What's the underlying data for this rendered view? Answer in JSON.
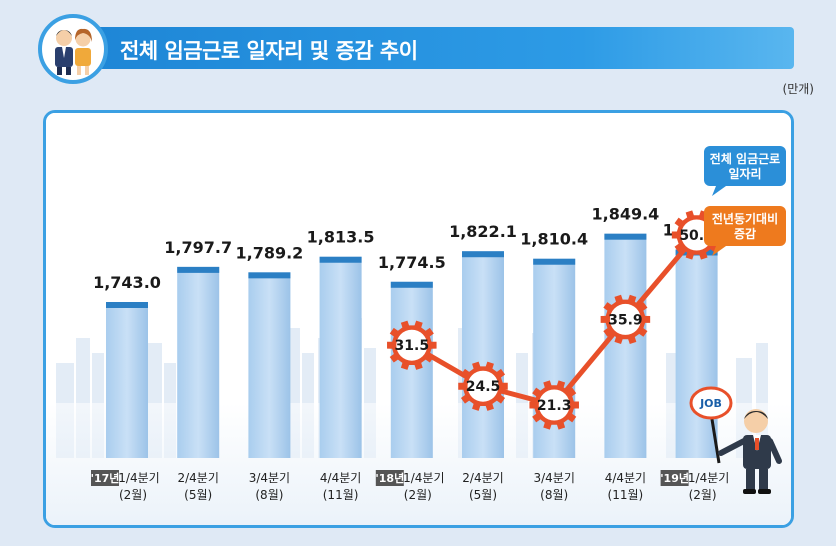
{
  "header": {
    "title": "전체 임금근로 일자리 및 증감 추이",
    "unit": "(만개)"
  },
  "chart_data": {
    "type": "bar",
    "title": "전체 임금근로 일자리 및 증감 추이",
    "unit": "(만개)",
    "categories": [
      {
        "year": "'17년",
        "quarter": "1/4분기",
        "month": "(2월)"
      },
      {
        "year": "",
        "quarter": "2/4분기",
        "month": "(5월)"
      },
      {
        "year": "",
        "quarter": "3/4분기",
        "month": "(8월)"
      },
      {
        "year": "",
        "quarter": "4/4분기",
        "month": "(11월)"
      },
      {
        "year": "'18년",
        "quarter": "1/4분기",
        "month": "(2월)"
      },
      {
        "year": "",
        "quarter": "2/4분기",
        "month": "(5월)"
      },
      {
        "year": "",
        "quarter": "3/4분기",
        "month": "(8월)"
      },
      {
        "year": "",
        "quarter": "4/4분기",
        "month": "(11월)"
      },
      {
        "year": "'19년",
        "quarter": "1/4분기",
        "month": "(2월)"
      }
    ],
    "bars": {
      "name": "전체 임금근로 일자리",
      "values": [
        1743.0,
        1797.7,
        1789.2,
        1813.5,
        1774.5,
        1822.1,
        1810.4,
        1849.4,
        1824.8
      ],
      "labels": [
        "1,743.0",
        "1,797.7",
        "1,789.2",
        "1,813.5",
        "1,774.5",
        "1,822.1",
        "1,810.4",
        "1,849.4",
        "1,824.8"
      ],
      "color": "#9fc6ea"
    },
    "line": {
      "name": "전년동기대비 증감",
      "start_index": 4,
      "values": [
        31.5,
        24.5,
        21.3,
        35.9,
        50.3
      ],
      "labels": [
        "31.5",
        "24.5",
        "21.3",
        "35.9",
        "50.3"
      ],
      "color": "#e8502a"
    },
    "legend": [
      {
        "text_lines": [
          "전체 임금근로",
          "일자리"
        ],
        "color": "#2b8fd8"
      },
      {
        "text_lines": [
          "전년동기대비",
          "증감"
        ],
        "color": "#ee7a1e"
      }
    ],
    "legend_position": "top-right",
    "grid": false
  },
  "decor": {
    "sign_text": "JOB"
  }
}
